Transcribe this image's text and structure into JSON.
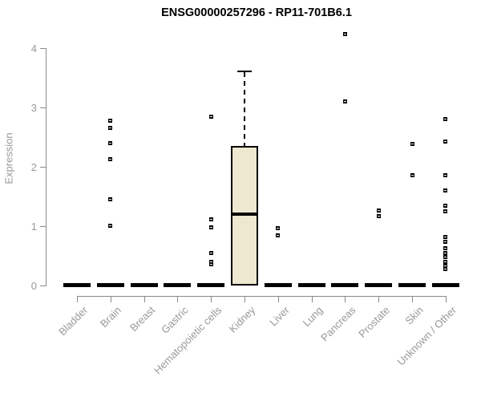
{
  "title": "ENSG00000257296 - RP11-701B6.1",
  "chart_data": {
    "type": "boxplot",
    "title": "ENSG00000257296 - RP11-701B6.1",
    "xlabel": "",
    "ylabel": "Expression",
    "ylim": [
      0,
      4.3
    ],
    "yticks": [
      0,
      1,
      2,
      3,
      4
    ],
    "grid": false,
    "legend": false,
    "categories": [
      "Bladder",
      "Brain",
      "Breast",
      "Gastric",
      "Hematopoietic cells",
      "Kidney",
      "Liver",
      "Lung",
      "Pancreas",
      "Prostate",
      "Skin",
      "Unknown / Other"
    ],
    "boxes": [
      {
        "category": "Bladder",
        "median": 0,
        "q1": 0,
        "q3": 0,
        "whisker_low": 0,
        "whisker_high": 0,
        "points": []
      },
      {
        "category": "Brain",
        "median": 0,
        "q1": 0,
        "q3": 0,
        "whisker_low": 0,
        "whisker_high": 0,
        "points": [
          2.78,
          2.65,
          2.4,
          2.13,
          1.45,
          1.0
        ]
      },
      {
        "category": "Breast",
        "median": 0,
        "q1": 0,
        "q3": 0,
        "whisker_low": 0,
        "whisker_high": 0,
        "points": []
      },
      {
        "category": "Gastric",
        "median": 0,
        "q1": 0,
        "q3": 0,
        "whisker_low": 0,
        "whisker_high": 0,
        "points": []
      },
      {
        "category": "Hematopoietic cells",
        "median": 0,
        "q1": 0,
        "q3": 0,
        "whisker_low": 0,
        "whisker_high": 0,
        "points": [
          2.85,
          1.11,
          0.98,
          0.54,
          0.4,
          0.36
        ]
      },
      {
        "category": "Kidney",
        "median": 1.2,
        "q1": 0,
        "q3": 2.35,
        "whisker_low": 0,
        "whisker_high": 3.6,
        "points": []
      },
      {
        "category": "Liver",
        "median": 0,
        "q1": 0,
        "q3": 0,
        "whisker_low": 0,
        "whisker_high": 0,
        "points": [
          0.96,
          0.84
        ]
      },
      {
        "category": "Lung",
        "median": 0,
        "q1": 0,
        "q3": 0,
        "whisker_low": 0,
        "whisker_high": 0,
        "points": []
      },
      {
        "category": "Pancreas",
        "median": 0,
        "q1": 0,
        "q3": 0,
        "whisker_low": 0,
        "whisker_high": 0,
        "points": [
          4.24,
          3.1
        ]
      },
      {
        "category": "Prostate",
        "median": 0,
        "q1": 0,
        "q3": 0,
        "whisker_low": 0,
        "whisker_high": 0,
        "points": [
          1.26,
          1.17
        ]
      },
      {
        "category": "Skin",
        "median": 0,
        "q1": 0,
        "q3": 0,
        "whisker_low": 0,
        "whisker_high": 0,
        "points": [
          2.39,
          1.86
        ]
      },
      {
        "category": "Unknown / Other",
        "median": 0,
        "q1": 0,
        "q3": 0,
        "whisker_low": 0,
        "whisker_high": 0,
        "points": [
          2.81,
          2.42,
          1.85,
          1.6,
          1.34,
          1.25,
          0.82,
          0.74,
          0.62,
          0.55,
          0.48,
          0.39,
          0.33,
          0.28
        ]
      }
    ],
    "colors": {
      "box_fill": "#EDE8CF",
      "box_border": "#000000",
      "median": "#000000",
      "point": "#000000",
      "axis": "#8A8A8A",
      "tick_label": "#999999",
      "title": "#000000"
    }
  }
}
